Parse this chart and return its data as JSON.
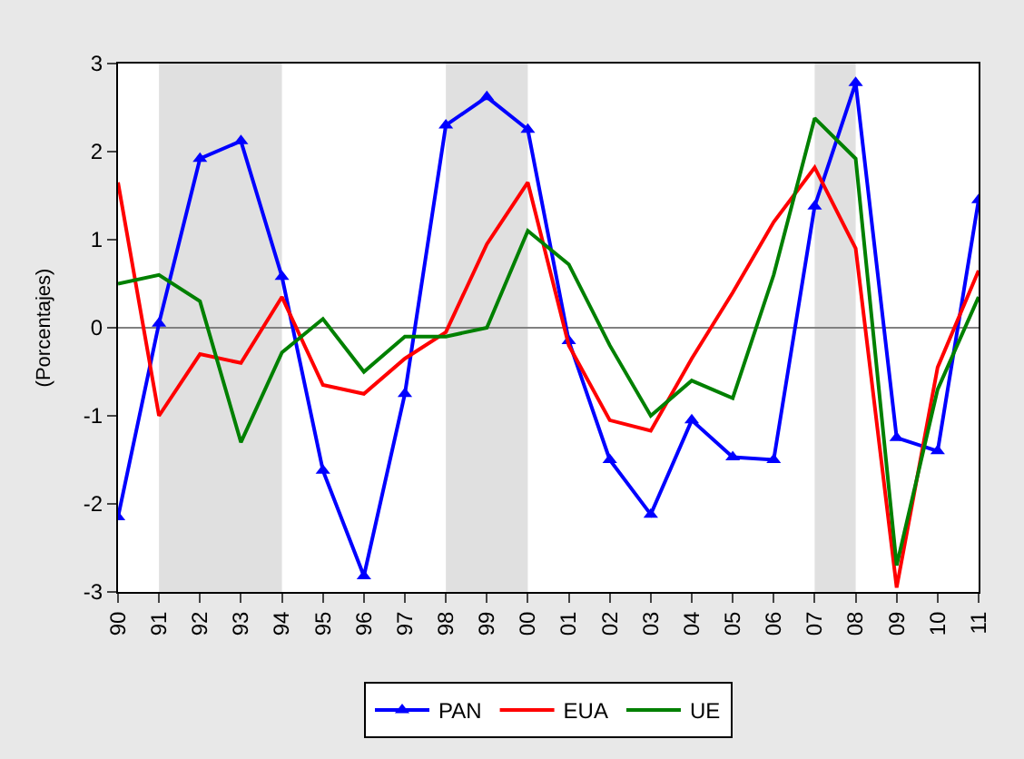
{
  "chart_data": {
    "type": "line",
    "ylabel": "(Porcentajes)",
    "categories": [
      "90",
      "91",
      "92",
      "93",
      "94",
      "95",
      "96",
      "97",
      "98",
      "99",
      "00",
      "01",
      "02",
      "03",
      "04",
      "05",
      "06",
      "07",
      "08",
      "09",
      "10",
      "11"
    ],
    "series": [
      {
        "name": "PAN",
        "color": "#0000ff",
        "marker": "triangle",
        "values": [
          -2.15,
          0.05,
          1.92,
          2.12,
          0.58,
          -1.62,
          -2.82,
          -0.75,
          2.3,
          2.62,
          2.25,
          -0.15,
          -1.5,
          -2.12,
          -1.05,
          -1.47,
          -1.5,
          1.38,
          2.78,
          -1.25,
          -1.4,
          1.45
        ]
      },
      {
        "name": "EUA",
        "color": "#ff0000",
        "values": [
          1.65,
          -1.0,
          -0.3,
          -0.4,
          0.35,
          -0.65,
          -0.75,
          -0.35,
          -0.05,
          0.95,
          1.65,
          -0.2,
          -1.05,
          -1.17,
          -0.35,
          0.4,
          1.2,
          1.82,
          0.9,
          -2.95,
          -0.45,
          0.65
        ]
      },
      {
        "name": "UE",
        "color": "#008000",
        "values": [
          0.5,
          0.6,
          0.3,
          -1.3,
          -0.28,
          0.1,
          -0.5,
          -0.1,
          -0.1,
          0.0,
          1.1,
          0.72,
          -0.2,
          -1.0,
          -0.6,
          -0.8,
          0.6,
          2.38,
          1.92,
          -2.7,
          -0.7,
          0.35
        ]
      }
    ],
    "ylim": [
      -3,
      3
    ],
    "yticks": [
      -3,
      -2,
      -1,
      0,
      1,
      2,
      3
    ],
    "ref_lines": [
      {
        "axis": "y",
        "value": 0,
        "color": "#808080"
      }
    ],
    "bands": [
      {
        "axis": "x",
        "from": "91",
        "to": "94",
        "color": "#e0e0e0"
      },
      {
        "axis": "x",
        "from": "98",
        "to": "00",
        "color": "#e0e0e0"
      },
      {
        "axis": "x",
        "from": "07",
        "to": "08",
        "color": "#e0e0e0"
      }
    ],
    "grid": false,
    "legend": "bottom"
  }
}
